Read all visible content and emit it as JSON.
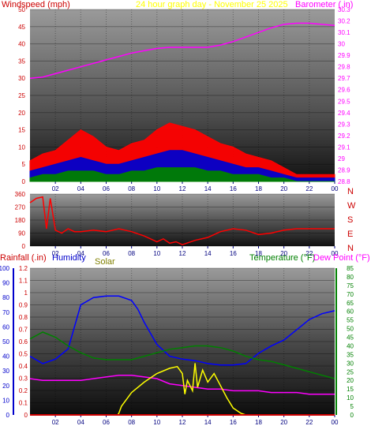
{
  "colors": {
    "wind": "#ff0000",
    "gust": "#ff0000",
    "wind_dir": "#ff0000",
    "avg_wind_blue": "#0000cc",
    "avg_wind_green": "#008000",
    "barometer": "#ff00ff",
    "title": "#ffff00",
    "rain": "#cc0000",
    "humidity": "#0000ff",
    "solar": "#ffff00",
    "solar_label": "#808000",
    "temperature": "#008000",
    "dew_point": "#ff00ff",
    "left_axis": "#cc0000",
    "humidity_axis": "#0000cc",
    "right_axis": "#008000",
    "month_axis": "#000080"
  },
  "top": {
    "left_label": "Windspeed (mph)",
    "title": "24 hour graph day - November 25 2025",
    "right_label": "Barometer (.in)"
  },
  "dir_labels": [
    "N",
    "W",
    "S",
    "E",
    "N"
  ],
  "bottom": {
    "rain_label": "Rainfall (.in)",
    "humidity_label": "Humidity",
    "solar_label": "Solar",
    "temp_label": "Temperature (°F)",
    "dew_label": "Dew Point (°F)"
  },
  "chart_data": [
    {
      "type": "line",
      "title": "24 hour graph day - November 25 2025",
      "ylabel": "Windspeed (mph)",
      "y2label": "Barometer (.in)",
      "ylim": [
        0,
        50
      ],
      "y2lim": [
        28.8,
        30.3
      ],
      "yticks": [
        "0",
        "5",
        "10",
        "15",
        "20",
        "25",
        "30",
        "35",
        "40",
        "45",
        "50"
      ],
      "y2ticks": [
        "28.8",
        "28.9",
        "29",
        "29.1",
        "29.2",
        "29.3",
        "29.4",
        "29.5",
        "29.6",
        "29.7",
        "29.8",
        "29.9",
        "30",
        "30.1",
        "30.2",
        "30.3"
      ],
      "xticks": [
        "02",
        "04",
        "06",
        "08",
        "10",
        "12",
        "14",
        "16",
        "18",
        "20",
        "22",
        "00"
      ],
      "series": [
        {
          "name": "Barometer",
          "axis": "right",
          "x": [
            0,
            1,
            2,
            3,
            4,
            5,
            6,
            7,
            8,
            9,
            10,
            11,
            12,
            13,
            14,
            15,
            16,
            17,
            18,
            19,
            20,
            21,
            22,
            23,
            24
          ],
          "y": [
            29.7,
            29.71,
            29.74,
            29.77,
            29.8,
            29.83,
            29.86,
            29.89,
            29.92,
            29.94,
            29.96,
            29.97,
            29.97,
            29.97,
            29.97,
            29.99,
            30.02,
            30.06,
            30.1,
            30.14,
            30.17,
            30.18,
            30.18,
            30.17,
            30.16
          ]
        },
        {
          "name": "Wind gust",
          "axis": "left",
          "x": [
            0,
            1,
            2,
            3,
            4,
            5,
            6,
            7,
            8,
            9,
            10,
            11,
            12,
            13,
            14,
            15,
            16,
            17,
            18,
            19,
            20,
            21,
            22,
            23,
            24
          ],
          "y": [
            6,
            8,
            9,
            12,
            15,
            13,
            10,
            9,
            11,
            12,
            15,
            17,
            16,
            15,
            13,
            11,
            10,
            8,
            7,
            6,
            4,
            2,
            2,
            2,
            2
          ]
        },
        {
          "name": "Wind speed",
          "axis": "left",
          "x": [
            0,
            1,
            2,
            3,
            4,
            5,
            6,
            7,
            8,
            9,
            10,
            11,
            12,
            13,
            14,
            15,
            16,
            17,
            18,
            19,
            20,
            21,
            22,
            23,
            24
          ],
          "y": [
            3,
            4,
            5,
            6,
            7,
            6,
            5,
            5,
            6,
            7,
            8,
            9,
            9,
            8,
            7,
            6,
            5,
            4,
            4,
            3,
            2,
            1,
            1,
            1,
            1
          ]
        },
        {
          "name": "Average wind",
          "axis": "left",
          "x": [
            0,
            1,
            2,
            3,
            4,
            5,
            6,
            7,
            8,
            9,
            10,
            11,
            12,
            13,
            14,
            15,
            16,
            17,
            18,
            19,
            20,
            21,
            22,
            23,
            24
          ],
          "y": [
            1,
            2,
            2,
            3,
            3,
            3,
            2,
            2,
            3,
            3,
            4,
            4,
            4,
            4,
            3,
            3,
            2,
            2,
            2,
            1,
            1,
            0,
            0,
            0,
            0
          ]
        }
      ]
    },
    {
      "type": "line",
      "ylim": [
        0,
        360
      ],
      "yticks": [
        "0",
        "90",
        "180",
        "270",
        "360"
      ],
      "xticks": [
        "02",
        "04",
        "06",
        "08",
        "10",
        "12",
        "14",
        "16",
        "18",
        "20",
        "22",
        "00"
      ],
      "series": [
        {
          "name": "Wind direction",
          "x": [
            0,
            0.5,
            1,
            1.3,
            1.6,
            2,
            2.5,
            3,
            3.5,
            4,
            5,
            6,
            7,
            8,
            9,
            10,
            10.5,
            11,
            11.5,
            12,
            13,
            14,
            15,
            16,
            17,
            18,
            19,
            20,
            21,
            22,
            23,
            24
          ],
          "y": [
            300,
            330,
            340,
            120,
            330,
            110,
            90,
            120,
            100,
            100,
            110,
            100,
            120,
            100,
            70,
            30,
            50,
            20,
            30,
            10,
            40,
            60,
            100,
            120,
            110,
            80,
            90,
            110,
            120,
            120,
            120,
            120
          ]
        }
      ]
    },
    {
      "type": "line",
      "ylabel": "Rainfall (.in)",
      "y2label": "Temperature (°F)",
      "ylim": [
        0,
        1.2
      ],
      "yticks": [
        "0",
        "0.1",
        "0.2",
        "0.3",
        "0.4",
        "0.5",
        "0.6",
        "0.7",
        "0.8",
        "0.9",
        "1",
        "1.1",
        "1.2"
      ],
      "humidity_ticks": [
        "0",
        "10",
        "20",
        "30",
        "40",
        "50",
        "60",
        "70",
        "80",
        "90",
        "100"
      ],
      "y2lim": [
        0,
        85
      ],
      "y2ticks": [
        "0",
        "5",
        "10",
        "15",
        "20",
        "25",
        "30",
        "35",
        "40",
        "45",
        "50",
        "55",
        "60",
        "65",
        "70",
        "75",
        "80",
        "85"
      ],
      "xticks": [
        "02",
        "04",
        "06",
        "08",
        "10",
        "12",
        "14",
        "16",
        "18",
        "20",
        "22",
        "00"
      ],
      "series": [
        {
          "name": "Humidity",
          "axis": "humidity",
          "x": [
            0,
            1,
            2,
            3,
            3.5,
            4,
            5,
            6,
            7,
            8,
            8.5,
            9,
            10,
            11,
            12,
            13,
            14,
            15,
            16,
            17,
            18,
            19,
            20,
            21,
            22,
            23,
            24
          ],
          "y": [
            40,
            35,
            38,
            45,
            60,
            75,
            80,
            81,
            81,
            78,
            72,
            63,
            48,
            40,
            38,
            37,
            35,
            34,
            34,
            35,
            42,
            47,
            51,
            58,
            65,
            69,
            71
          ]
        },
        {
          "name": "Temperature",
          "axis": "right",
          "x": [
            0,
            1,
            2,
            3,
            4,
            5,
            6,
            7,
            8,
            9,
            10,
            11,
            12,
            13,
            14,
            15,
            16,
            17,
            18,
            19,
            20,
            21,
            22,
            23,
            24
          ],
          "y": [
            44,
            48,
            45,
            40,
            36,
            33,
            32,
            32,
            32,
            34,
            36,
            38,
            39,
            40,
            40,
            39,
            37,
            34,
            32,
            31,
            29,
            27,
            25,
            23,
            21
          ]
        },
        {
          "name": "Dew Point",
          "axis": "right",
          "x": [
            0,
            1,
            2,
            3,
            4,
            5,
            6,
            7,
            8,
            9,
            10,
            11,
            12,
            13,
            14,
            15,
            16,
            17,
            18,
            19,
            20,
            21,
            22,
            23,
            24
          ],
          "y": [
            21,
            20,
            20,
            20,
            20,
            21,
            22,
            23,
            23,
            22,
            21,
            18,
            17,
            16,
            15,
            15,
            14,
            14,
            14,
            13,
            13,
            13,
            12,
            12,
            12
          ]
        },
        {
          "name": "Solar",
          "axis": "right",
          "x": [
            0,
            6.9,
            7,
            7.2,
            8,
            9,
            10,
            11,
            11.6,
            12,
            12.2,
            12.4,
            12.8,
            13,
            13.2,
            13.6,
            14,
            14.5,
            15,
            15.5,
            16,
            16.6,
            17,
            24
          ],
          "y": [
            0,
            0,
            1,
            5,
            13,
            19,
            24,
            27,
            28,
            24,
            12,
            20,
            14,
            30,
            16,
            26,
            19,
            24,
            17,
            10,
            4,
            1,
            0,
            0
          ]
        },
        {
          "name": "Rainfall",
          "axis": "left",
          "x": [
            0,
            24
          ],
          "y": [
            0,
            0
          ]
        }
      ]
    }
  ]
}
